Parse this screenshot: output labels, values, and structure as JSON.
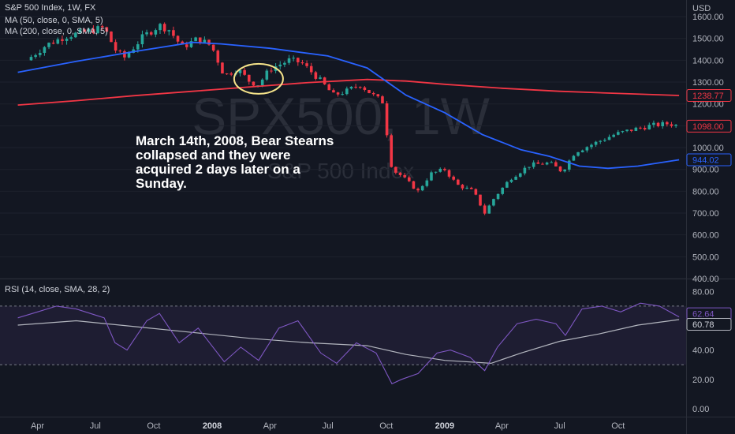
{
  "legend": {
    "main": "S&P 500 Index, 1W, FX",
    "ma50": "MA (50, close, 0, SMA, 5)",
    "ma200": "MA (200, close, 0, SMA, 5)",
    "rsi": "RSI (14, close, SMA, 28, 2)"
  },
  "watermark": {
    "symbol": "SPX500, 1W",
    "name": "S&P 500 Index"
  },
  "annotation": "March 14th, 2008, Bear Stearns collapsed and they were acquired 2 days later on a Sunday.",
  "colors": {
    "background": "#131722",
    "up": "#26a69a",
    "down": "#f23645",
    "ma50": "#2962ff",
    "ma200": "#f23645",
    "rsi": "#7e57c2",
    "rsi_ma": "#b2b5be",
    "highlight": "#f5e38a"
  },
  "chart_data": [
    {
      "type": "candlestick",
      "title": "S&P 500 Index, 1W, FX",
      "currency": "USD",
      "ylim": [
        400,
        1640
      ],
      "y_ticks": [
        400,
        500,
        600,
        700,
        800,
        900,
        1000,
        1100,
        1200,
        1300,
        1400,
        1500,
        1600
      ],
      "x_ticks": [
        {
          "label": "Apr",
          "bold": false
        },
        {
          "label": "Jul",
          "bold": false
        },
        {
          "label": "Oct",
          "bold": false
        },
        {
          "label": "2008",
          "bold": true
        },
        {
          "label": "Apr",
          "bold": false
        },
        {
          "label": "Jul",
          "bold": false
        },
        {
          "label": "Oct",
          "bold": false
        },
        {
          "label": "2009",
          "bold": true
        },
        {
          "label": "Apr",
          "bold": false
        },
        {
          "label": "Jul",
          "bold": false
        },
        {
          "label": "Oct",
          "bold": false
        }
      ],
      "close_path": [
        [
          "2007-03-15",
          1400
        ],
        [
          "2007-04-15",
          1470
        ],
        [
          "2007-05-15",
          1510
        ],
        [
          "2007-06-15",
          1530
        ],
        [
          "2007-07-15",
          1550
        ],
        [
          "2007-08-01",
          1450
        ],
        [
          "2007-08-15",
          1410
        ],
        [
          "2007-09-15",
          1510
        ],
        [
          "2007-10-10",
          1560
        ],
        [
          "2007-10-25",
          1540
        ],
        [
          "2007-11-15",
          1460
        ],
        [
          "2007-12-10",
          1500
        ],
        [
          "2007-12-31",
          1465
        ],
        [
          "2008-01-20",
          1330
        ],
        [
          "2008-02-10",
          1360
        ],
        [
          "2008-03-01",
          1300
        ],
        [
          "2008-03-14",
          1290
        ],
        [
          "2008-04-01",
          1360
        ],
        [
          "2008-05-01",
          1400
        ],
        [
          "2008-05-20",
          1390
        ],
        [
          "2008-06-15",
          1320
        ],
        [
          "2008-07-10",
          1240
        ],
        [
          "2008-08-01",
          1260
        ],
        [
          "2008-08-20",
          1290
        ],
        [
          "2008-09-10",
          1240
        ],
        [
          "2008-09-25",
          1210
        ],
        [
          "2008-10-10",
          900
        ],
        [
          "2008-10-25",
          870
        ],
        [
          "2008-11-20",
          800
        ],
        [
          "2008-12-10",
          880
        ],
        [
          "2009-01-01",
          900
        ],
        [
          "2009-01-20",
          830
        ],
        [
          "2009-02-15",
          800
        ],
        [
          "2009-03-05",
          700
        ],
        [
          "2009-03-20",
          770
        ],
        [
          "2009-04-15",
          860
        ],
        [
          "2009-05-15",
          920
        ],
        [
          "2009-06-15",
          930
        ],
        [
          "2009-07-05",
          890
        ],
        [
          "2009-07-25",
          980
        ],
        [
          "2009-08-25",
          1020
        ],
        [
          "2009-09-25",
          1060
        ],
        [
          "2009-10-20",
          1080
        ],
        [
          "2009-11-20",
          1100
        ],
        [
          "2009-12-20",
          1110
        ],
        [
          "2010-01-05",
          1098
        ]
      ],
      "ma50": [
        [
          "2007-03-01",
          1345
        ],
        [
          "2007-06-01",
          1395
        ],
        [
          "2007-09-01",
          1440
        ],
        [
          "2007-12-01",
          1482
        ],
        [
          "2008-01-15",
          1475
        ],
        [
          "2008-04-01",
          1455
        ],
        [
          "2008-07-01",
          1420
        ],
        [
          "2008-09-01",
          1365
        ],
        [
          "2008-11-01",
          1240
        ],
        [
          "2009-01-01",
          1160
        ],
        [
          "2009-03-01",
          1060
        ],
        [
          "2009-05-01",
          990
        ],
        [
          "2009-06-15",
          960
        ],
        [
          "2009-08-01",
          915
        ],
        [
          "2009-09-15",
          905
        ],
        [
          "2009-11-01",
          915
        ],
        [
          "2010-01-05",
          944
        ]
      ],
      "ma200": [
        [
          "2007-03-01",
          1195
        ],
        [
          "2007-06-01",
          1215
        ],
        [
          "2007-09-01",
          1238
        ],
        [
          "2007-12-01",
          1258
        ],
        [
          "2008-03-01",
          1278
        ],
        [
          "2008-06-01",
          1298
        ],
        [
          "2008-09-01",
          1312
        ],
        [
          "2008-11-01",
          1305
        ],
        [
          "2009-01-01",
          1290
        ],
        [
          "2009-04-01",
          1272
        ],
        [
          "2009-07-01",
          1258
        ],
        [
          "2009-10-01",
          1248
        ],
        [
          "2010-01-05",
          1238.77
        ]
      ],
      "price_labels": [
        {
          "text": "1238.77",
          "value": 1238.77,
          "color": "#f23645",
          "style": "outline"
        },
        {
          "text": "1098.00",
          "value": 1098.0,
          "color": "#f23645",
          "style": "outline"
        },
        {
          "text": "944.02",
          "value": 944.02,
          "color": "#2962ff",
          "style": "outline"
        }
      ],
      "highlight_date": "2008-03-14"
    },
    {
      "type": "line",
      "title": "RSI (14, close, SMA, 28, 2)",
      "ylim": [
        0,
        85
      ],
      "y_ticks": [
        0,
        20,
        40,
        60,
        80
      ],
      "band": [
        30,
        70
      ],
      "series": [
        {
          "name": "RSI",
          "values": [
            [
              "2007-03-01",
              62
            ],
            [
              "2007-04-01",
              66
            ],
            [
              "2007-05-01",
              70
            ],
            [
              "2007-06-01",
              68
            ],
            [
              "2007-07-15",
              62
            ],
            [
              "2007-08-01",
              45
            ],
            [
              "2007-08-20",
              40
            ],
            [
              "2007-09-20",
              60
            ],
            [
              "2007-10-10",
              65
            ],
            [
              "2007-11-10",
              45
            ],
            [
              "2007-12-10",
              55
            ],
            [
              "2008-01-20",
              32
            ],
            [
              "2008-02-15",
              42
            ],
            [
              "2008-03-14",
              33
            ],
            [
              "2008-04-15",
              55
            ],
            [
              "2008-05-15",
              60
            ],
            [
              "2008-06-20",
              38
            ],
            [
              "2008-07-15",
              31
            ],
            [
              "2008-08-15",
              45
            ],
            [
              "2008-09-15",
              38
            ],
            [
              "2008-10-10",
              17
            ],
            [
              "2008-10-25",
              20
            ],
            [
              "2008-11-20",
              24
            ],
            [
              "2008-12-20",
              38
            ],
            [
              "2009-01-10",
              40
            ],
            [
              "2009-02-10",
              35
            ],
            [
              "2009-03-05",
              26
            ],
            [
              "2009-03-25",
              42
            ],
            [
              "2009-04-25",
              58
            ],
            [
              "2009-05-25",
              61
            ],
            [
              "2009-06-25",
              58
            ],
            [
              "2009-07-10",
              50
            ],
            [
              "2009-08-05",
              68
            ],
            [
              "2009-09-05",
              70
            ],
            [
              "2009-10-05",
              66
            ],
            [
              "2009-11-05",
              72
            ],
            [
              "2009-12-05",
              70
            ],
            [
              "2010-01-05",
              62.64
            ]
          ]
        },
        {
          "name": "RSI-based MA",
          "values": [
            [
              "2007-03-01",
              57
            ],
            [
              "2007-06-01",
              60
            ],
            [
              "2007-09-01",
              56
            ],
            [
              "2007-12-01",
              52
            ],
            [
              "2008-03-01",
              48
            ],
            [
              "2008-06-01",
              45
            ],
            [
              "2008-09-01",
              43
            ],
            [
              "2008-11-01",
              37
            ],
            [
              "2009-01-01",
              33
            ],
            [
              "2009-03-15",
              31
            ],
            [
              "2009-05-01",
              38
            ],
            [
              "2009-07-01",
              46
            ],
            [
              "2009-09-01",
              51
            ],
            [
              "2009-11-01",
              57
            ],
            [
              "2010-01-05",
              60.78
            ]
          ]
        }
      ],
      "value_labels": [
        {
          "text": "62.64",
          "value": 62.64,
          "color": "#7e57c2"
        },
        {
          "text": "60.78",
          "value": 60.78,
          "color": "#b2b5be"
        }
      ]
    }
  ]
}
